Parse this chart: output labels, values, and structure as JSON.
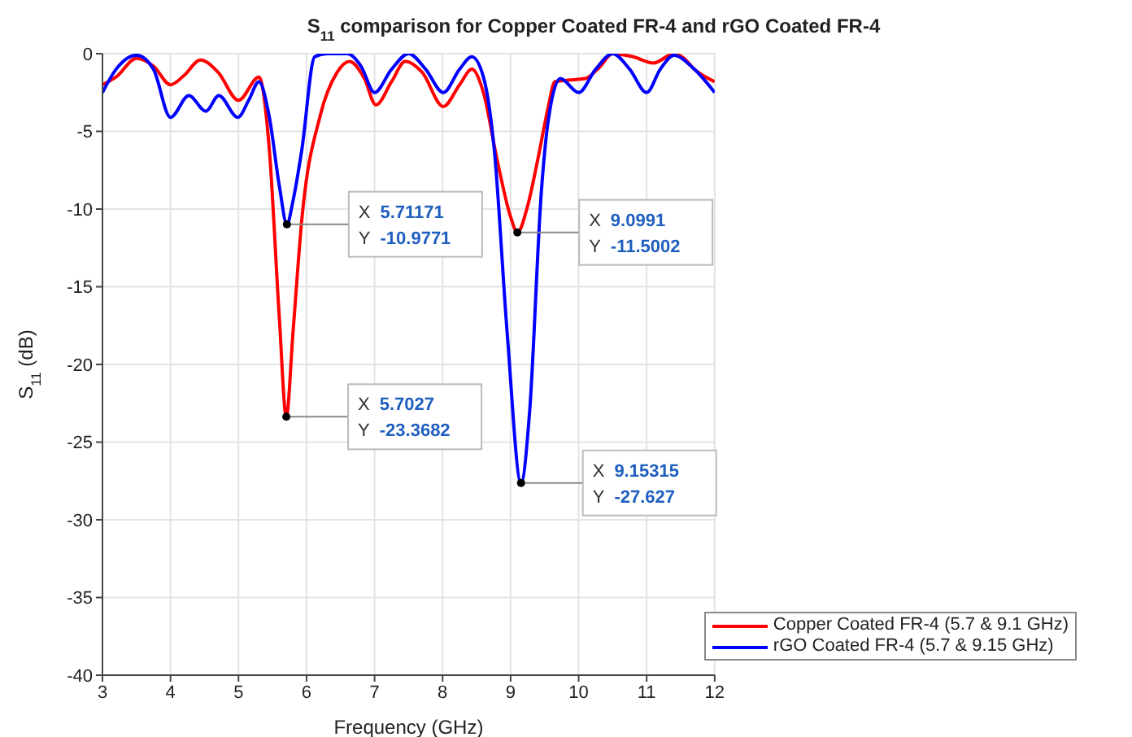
{
  "chart_data": {
    "type": "line",
    "title": "S$_{11}$ comparison for Copper Coated FR-4 and rGO Coated FR-4",
    "xlabel": "Frequency (GHz)",
    "ylabel": "S$_{11}$ (dB)",
    "xlim": [
      3,
      12
    ],
    "xticks": [
      3,
      4,
      5,
      6,
      7,
      8,
      9,
      10,
      11,
      12
    ],
    "ylim": [
      -40,
      0
    ],
    "yticks": [
      -40,
      -35,
      -30,
      -25,
      -20,
      -15,
      -10,
      -5,
      0
    ],
    "grid": true,
    "legend": "bottom right",
    "marker": "none",
    "line_style": "solid",
    "series": [
      {
        "name": "Copper Coated FR-4 (5.7 & 9.1 GHz)",
        "color": "#ff0000",
        "x": [
          3,
          3.2,
          3.5,
          3.75,
          4,
          4.2,
          4.44,
          4.7,
          5,
          5.3,
          5.45,
          5.6,
          5.7027,
          5.8,
          5.93,
          6.2,
          6.45,
          6.63,
          6.85,
          7.02,
          7.25,
          7.45,
          7.7,
          8.01,
          8.25,
          8.43,
          8.6,
          8.8,
          9,
          9.0991,
          9.25,
          9.4,
          9.55,
          9.65,
          9.85,
          10.1,
          10.3,
          10.5,
          10.8,
          11.1,
          11.4,
          11.55,
          11.7,
          12
        ],
        "values": [
          -2,
          -1.5,
          -0.3,
          -0.8,
          -2,
          -1.4,
          -0.4,
          -1.2,
          -3,
          -1.5,
          -6,
          -17,
          -23.3682,
          -18,
          -10.7,
          -4,
          -1.2,
          -0.5,
          -1.6,
          -3.3,
          -1.8,
          -0.5,
          -1.2,
          -3.4,
          -2,
          -1,
          -2.5,
          -6.8,
          -10.5,
          -11.5002,
          -9.8,
          -6.8,
          -3.5,
          -1.8,
          -1.7,
          -1.6,
          -0.9,
          0,
          -0.2,
          -0.6,
          0,
          -0.3,
          -1,
          -1.8
        ]
      },
      {
        "name": "rGO Coated FR-4 (5.7 & 9.15 GHz)",
        "color": "#0000ff",
        "x": [
          3,
          3.2,
          3.5,
          3.75,
          4,
          4.27,
          4.52,
          4.71,
          4.99,
          5.15,
          5.3,
          5.45,
          5.6,
          5.71171,
          5.8,
          5.93,
          6.12,
          6.3,
          6.6,
          6.8,
          7,
          7.25,
          7.5,
          7.75,
          8.01,
          8.25,
          8.43,
          8.6,
          8.76,
          8.95,
          9.15315,
          9.28,
          9.45,
          9.55,
          9.73,
          10,
          10.25,
          10.5,
          10.75,
          11,
          11.2,
          11.4,
          11.7,
          12
        ],
        "values": [
          -2.5,
          -1,
          -0.1,
          -1,
          -4.1,
          -2.7,
          -3.7,
          -2.7,
          -4.1,
          -3,
          -1.8,
          -4,
          -8.5,
          -10.9771,
          -9.5,
          -6.2,
          -0.2,
          0,
          0,
          -0.8,
          -2.5,
          -1,
          0,
          -1,
          -2.5,
          -1,
          -0.2,
          -1.5,
          -6.2,
          -18,
          -27.627,
          -23,
          -9,
          -4.4,
          -1.6,
          -2.5,
          -1,
          0,
          -1,
          -2.5,
          -1,
          -0.1,
          -1,
          -2.5
        ]
      }
    ],
    "annotations": [
      {
        "text": "X 5.71171\nY -10.9771",
        "x": 5.71171,
        "y": -10.9771
      },
      {
        "text": "X 5.7027\nY -23.3682",
        "x": 5.7027,
        "y": -23.3682
      },
      {
        "text": "X 9.0991\nY -11.5002",
        "x": 9.0991,
        "y": -11.5002
      },
      {
        "text": "X 9.15315\nY -27.627",
        "x": 9.15315,
        "y": -27.627
      }
    ]
  }
}
